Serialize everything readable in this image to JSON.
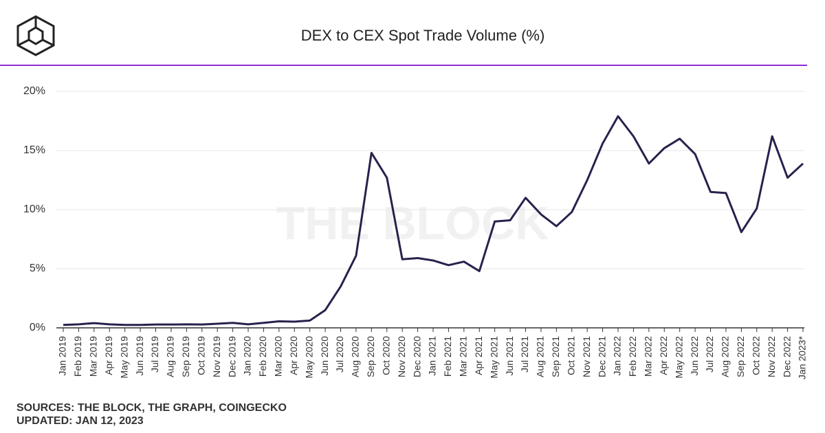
{
  "chart_data": {
    "type": "line",
    "title": "DEX to CEX Spot Trade Volume (%)",
    "watermark": "THE BLOCK",
    "sources": "SOURCES: THE BLOCK, THE GRAPH, COINGECKO",
    "updated": "UPDATED: JAN 12, 2023",
    "categories": [
      "Jan 2019",
      "Feb 2019",
      "Mar 2019",
      "Apr 2019",
      "May 2019",
      "Jun 2019",
      "Jul 2019",
      "Aug 2019",
      "Sep 2019",
      "Oct 2019",
      "Nov 2019",
      "Dec 2019",
      "Jan 2020",
      "Feb 2020",
      "Mar 2020",
      "Apr 2020",
      "May 2020",
      "Jun 2020",
      "Jul 2020",
      "Aug 2020",
      "Sep 2020",
      "Oct 2020",
      "Nov 2020",
      "Dec 2020",
      "Jan 2021",
      "Feb 2021",
      "Mar 2021",
      "Apr 2021",
      "May 2021",
      "Jun 2021",
      "Jul 2021",
      "Aug 2021",
      "Sep 2021",
      "Oct 2021",
      "Nov 2021",
      "Dec 2021",
      "Jan 2022",
      "Feb 2022",
      "Mar 2022",
      "Apr 2022",
      "May 2022",
      "Jun 2022",
      "Jul 2022",
      "Aug 2022",
      "Sep 2022",
      "Oct 2022",
      "Nov 2022",
      "Dec 2022",
      "Jan 2023*"
    ],
    "values": [
      0.25,
      0.3,
      0.4,
      0.3,
      0.25,
      0.25,
      0.28,
      0.28,
      0.3,
      0.28,
      0.35,
      0.42,
      0.3,
      0.42,
      0.55,
      0.52,
      0.62,
      1.5,
      3.5,
      6.1,
      14.8,
      12.7,
      5.8,
      5.9,
      5.7,
      5.3,
      5.6,
      4.8,
      9.0,
      9.1,
      11.0,
      9.6,
      8.6,
      9.8,
      12.5,
      15.6,
      17.9,
      16.2,
      13.9,
      15.2,
      16.0,
      14.7,
      11.5,
      11.4,
      8.1,
      10.1,
      16.2,
      12.7,
      13.9
    ],
    "color": "#28214d",
    "ylim": [
      0,
      20
    ],
    "yticks": [
      {
        "value": 0,
        "label": "0%"
      },
      {
        "value": 5,
        "label": "5%"
      },
      {
        "value": 10,
        "label": "10%"
      },
      {
        "value": 15,
        "label": "15%"
      },
      {
        "value": 20,
        "label": "20%"
      }
    ],
    "grid": true
  }
}
